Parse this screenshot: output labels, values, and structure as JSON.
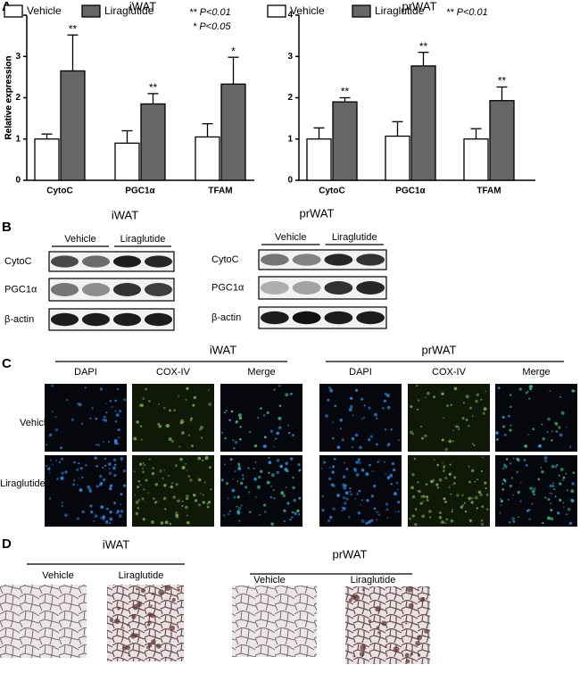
{
  "panel_labels": [
    "A",
    "B",
    "C",
    "D"
  ],
  "chart_data": [
    {
      "type": "bar",
      "title": "iWAT",
      "ylabel": "Relative expression",
      "categories": [
        "CytoC",
        "PGC1α",
        "TFAM"
      ],
      "series": [
        {
          "name": "Vehicle",
          "color": "#ffffff",
          "values": [
            1.0,
            0.9,
            1.05
          ],
          "errors": [
            0.12,
            0.3,
            0.32
          ]
        },
        {
          "name": "Liraglutide",
          "color": "#666666",
          "values": [
            2.65,
            1.85,
            2.33
          ],
          "errors": [
            0.87,
            0.25,
            0.65
          ],
          "annotations": [
            "**",
            "**",
            "*"
          ]
        }
      ],
      "ylim": [
        0,
        4
      ],
      "yticks": [
        0,
        1,
        2,
        3,
        4
      ],
      "notes": [
        "** P<0.01",
        "* P<0.05"
      ]
    },
    {
      "type": "bar",
      "title": "prWAT",
      "ylabel": "Relative expression",
      "categories": [
        "CytoC",
        "PGC1α",
        "TFAM"
      ],
      "series": [
        {
          "name": "Vehicle",
          "color": "#ffffff",
          "values": [
            1.0,
            1.07,
            1.0
          ],
          "errors": [
            0.27,
            0.35,
            0.25
          ]
        },
        {
          "name": "Liraglutide",
          "color": "#666666",
          "values": [
            1.9,
            2.77,
            1.93
          ],
          "errors": [
            0.1,
            0.33,
            0.33
          ],
          "annotations": [
            "**",
            "**",
            "**"
          ]
        }
      ],
      "ylim": [
        0,
        4
      ],
      "yticks": [
        0,
        1,
        2,
        3,
        4
      ],
      "notes": [
        "** P<0.01"
      ]
    }
  ],
  "blots": [
    {
      "title": "iWAT",
      "groups": [
        "Vehicle",
        "Liraglutide"
      ],
      "rows": [
        "CytoC",
        "PGC1α",
        "β-actin"
      ]
    },
    {
      "title": "prWAT",
      "groups": [
        "Vehicle",
        "Liraglutide"
      ],
      "rows": [
        "CytoC",
        "PGC1α",
        "β-actin"
      ]
    }
  ],
  "fluorescence": {
    "rows": [
      "Vehicle",
      "Liraglutide"
    ],
    "panels": [
      {
        "title": "iWAT",
        "columns": [
          "DAPI",
          "COX-IV",
          "Merge"
        ]
      },
      {
        "title": "prWAT",
        "columns": [
          "DAPI",
          "COX-IV",
          "Merge"
        ]
      }
    ]
  },
  "histology": [
    {
      "title": "iWAT",
      "columns": [
        "Vehicle",
        "Liraglutide"
      ]
    },
    {
      "title": "prWAT",
      "columns": [
        "Vehicle",
        "Liraglutide"
      ]
    }
  ]
}
